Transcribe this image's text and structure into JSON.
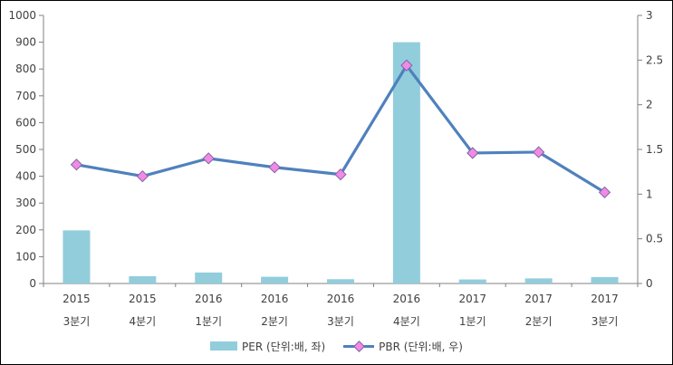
{
  "chart_data": {
    "type": "combo",
    "title": "",
    "grid": false,
    "legend_position": "bottom",
    "categories": [
      {
        "year": "2015",
        "quarter": "3분기"
      },
      {
        "year": "2015",
        "quarter": "4분기"
      },
      {
        "year": "2016",
        "quarter": "1분기"
      },
      {
        "year": "2016",
        "quarter": "2분기"
      },
      {
        "year": "2016",
        "quarter": "3분기"
      },
      {
        "year": "2016",
        "quarter": "4분기"
      },
      {
        "year": "2017",
        "quarter": "1분기"
      },
      {
        "year": "2017",
        "quarter": "2분기"
      },
      {
        "year": "2017",
        "quarter": "3분기"
      }
    ],
    "series": [
      {
        "name": "PER (단위:배, 좌)",
        "type": "bar",
        "axis": "left",
        "values": [
          198,
          27,
          41,
          25,
          16,
          900,
          15,
          19,
          24
        ]
      },
      {
        "name": "PBR (단위:배, 우)",
        "type": "line",
        "axis": "right",
        "values": [
          1.33,
          1.2,
          1.4,
          1.3,
          1.22,
          2.44,
          1.46,
          1.47,
          1.02
        ]
      }
    ],
    "left_axis": {
      "min": 0,
      "max": 1000,
      "step": 100,
      "tick_labels": [
        "0",
        "100",
        "200",
        "300",
        "400",
        "500",
        "600",
        "700",
        "800",
        "900",
        "1000"
      ]
    },
    "right_axis": {
      "min": 0,
      "max": 3,
      "step": 0.5,
      "tick_labels": [
        "0",
        "0.5",
        "1",
        "1.5",
        "2",
        "2.5",
        "3"
      ]
    },
    "colors": {
      "bar": "#92CDDC",
      "line": "#4F81BD",
      "marker_fill": "#F18AE6",
      "marker_stroke": "#8064A2",
      "axis": "#808080",
      "text": "#404040"
    }
  }
}
